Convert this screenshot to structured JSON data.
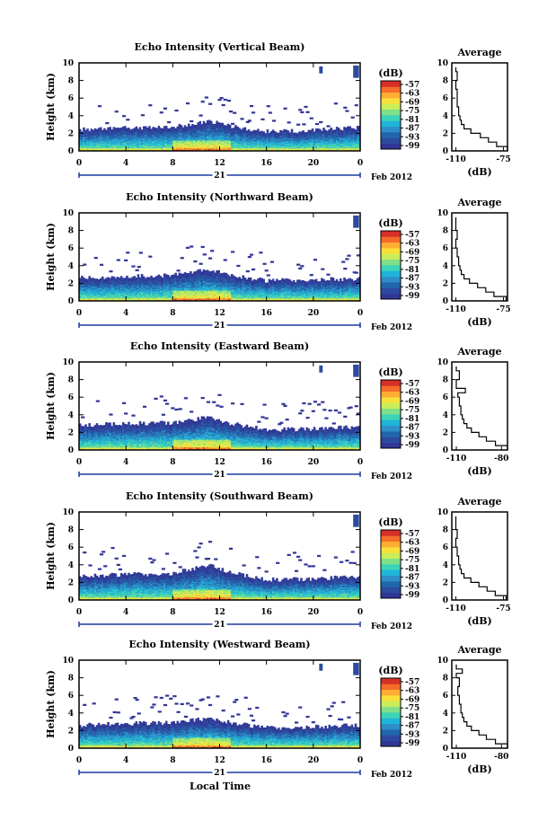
{
  "figure": {
    "date_label": "Feb 2012",
    "day_label": "21",
    "xlabel": "Local Time",
    "ylabel": "Height (km)",
    "colorbar_unit": "(dB)",
    "avg_title": "Average",
    "avg_xlabel": "(dB)",
    "x_ticks": [
      "0",
      "4",
      "8",
      "12",
      "16",
      "20",
      "0"
    ],
    "y_ticks": [
      "0",
      "2",
      "4",
      "6",
      "8",
      "10"
    ]
  },
  "colorbar": {
    "ticks": [
      "-57",
      "-63",
      "-69",
      "-75",
      "-81",
      "-87",
      "-93",
      "-99"
    ],
    "colors": [
      "#313695",
      "#2c4ba0",
      "#2166ac",
      "#2e8fc8",
      "#1fb5d8",
      "#3cd3b8",
      "#7fe089",
      "#c9ee5a",
      "#f8e03a",
      "#fdae33",
      "#f46d2a",
      "#d73027"
    ]
  },
  "chart_data": [
    {
      "type": "heatmap",
      "title": "Echo Intensity (Vertical Beam)",
      "xlabel": "Local Time",
      "ylabel": "Height (km)",
      "xlim": [
        0,
        24
      ],
      "ylim": [
        0,
        10
      ],
      "colorbar_range_db": [
        -99,
        -57
      ],
      "cloud_top_km": [
        [
          0,
          2.4
        ],
        [
          4,
          2.6
        ],
        [
          8,
          2.7
        ],
        [
          11,
          3.4
        ],
        [
          13,
          2.8
        ],
        [
          16,
          2.2
        ],
        [
          20,
          2.3
        ],
        [
          23,
          2.6
        ],
        [
          24,
          2.6
        ]
      ],
      "average_profile": {
        "title": "Average",
        "xlabel": "(dB)",
        "x_ticks": [
          "-110",
          "-75"
        ],
        "xlim": [
          -113,
          -72
        ],
        "height_km": [
          0,
          0.5,
          1,
          1.5,
          2,
          2.5,
          3,
          3.5,
          4,
          5,
          6,
          7,
          8,
          9,
          9.5
        ],
        "db": [
          -72,
          -80,
          -86,
          -92,
          -99,
          -104,
          -106,
          -107,
          -108,
          -109,
          -109,
          -110,
          -109,
          -110,
          -110
        ]
      }
    },
    {
      "type": "heatmap",
      "title": "Echo Intensity (Northward Beam)",
      "xlabel": "Local Time",
      "ylabel": "Height (km)",
      "xlim": [
        0,
        24
      ],
      "ylim": [
        0,
        10
      ],
      "colorbar_range_db": [
        -99,
        -57
      ],
      "cloud_top_km": [
        [
          0,
          2.6
        ],
        [
          4,
          2.8
        ],
        [
          8,
          2.9
        ],
        [
          11,
          3.6
        ],
        [
          13,
          2.9
        ],
        [
          16,
          2.3
        ],
        [
          20,
          2.4
        ],
        [
          23,
          2.5
        ],
        [
          24,
          2.5
        ]
      ],
      "average_profile": {
        "title": "Average",
        "xlabel": "(dB)",
        "x_ticks": [
          "-110",
          "-75"
        ],
        "xlim": [
          -113,
          -72
        ],
        "height_km": [
          0,
          0.5,
          1,
          1.5,
          2,
          2.5,
          3,
          3.5,
          4,
          5,
          6,
          7,
          8,
          9,
          9.5
        ],
        "db": [
          -73,
          -82,
          -88,
          -94,
          -100,
          -104,
          -106,
          -107,
          -108,
          -109,
          -110,
          -109,
          -110,
          -110,
          -110
        ]
      }
    },
    {
      "type": "heatmap",
      "title": "Echo Intensity (Eastward Beam)",
      "xlabel": "Local Time",
      "ylabel": "Height (km)",
      "xlim": [
        0,
        24
      ],
      "ylim": [
        0,
        10
      ],
      "colorbar_range_db": [
        -99,
        -57
      ],
      "cloud_top_km": [
        [
          0,
          2.8
        ],
        [
          4,
          3.0
        ],
        [
          8,
          3.1
        ],
        [
          11,
          3.7
        ],
        [
          13,
          3.0
        ],
        [
          16,
          2.3
        ],
        [
          20,
          2.4
        ],
        [
          23,
          2.6
        ],
        [
          24,
          2.6
        ]
      ],
      "average_profile": {
        "title": "Average",
        "xlabel": "(dB)",
        "x_ticks": [
          "-110",
          "-80"
        ],
        "xlim": [
          -113,
          -76
        ],
        "height_km": [
          0,
          0.5,
          1,
          1.5,
          2,
          2.5,
          3,
          3.5,
          4,
          5,
          6,
          6.5,
          7,
          8,
          9,
          9.5
        ],
        "db": [
          -76,
          -84,
          -90,
          -95,
          -100,
          -103,
          -105,
          -106,
          -107,
          -108,
          -109,
          -104,
          -110,
          -108,
          -110,
          -110
        ]
      }
    },
    {
      "type": "heatmap",
      "title": "Echo Intensity (Southward Beam)",
      "xlabel": "Local Time",
      "ylabel": "Height (km)",
      "xlim": [
        0,
        24
      ],
      "ylim": [
        0,
        10
      ],
      "colorbar_range_db": [
        -99,
        -57
      ],
      "cloud_top_km": [
        [
          0,
          2.7
        ],
        [
          4,
          2.9
        ],
        [
          8,
          3.0
        ],
        [
          11,
          4.0
        ],
        [
          13,
          3.1
        ],
        [
          16,
          2.3
        ],
        [
          20,
          2.4
        ],
        [
          23,
          2.6
        ],
        [
          24,
          2.6
        ]
      ],
      "average_profile": {
        "title": "Average",
        "xlabel": "(dB)",
        "x_ticks": [
          "-110",
          "-75"
        ],
        "xlim": [
          -113,
          -72
        ],
        "height_km": [
          0,
          0.5,
          1,
          1.5,
          2,
          2.5,
          3,
          3.5,
          4,
          5,
          6,
          7,
          8,
          9,
          9.5
        ],
        "db": [
          -73,
          -81,
          -87,
          -93,
          -99,
          -104,
          -106,
          -107,
          -108,
          -109,
          -110,
          -109,
          -110,
          -110,
          -110
        ]
      }
    },
    {
      "type": "heatmap",
      "title": "Echo Intensity (Westward Beam)",
      "xlabel": "Local Time",
      "ylabel": "Height (km)",
      "xlim": [
        0,
        24
      ],
      "ylim": [
        0,
        10
      ],
      "colorbar_range_db": [
        -99,
        -57
      ],
      "cloud_top_km": [
        [
          0,
          2.6
        ],
        [
          4,
          2.8
        ],
        [
          8,
          2.9
        ],
        [
          11,
          3.4
        ],
        [
          13,
          2.9
        ],
        [
          16,
          2.3
        ],
        [
          20,
          2.4
        ],
        [
          23,
          2.6
        ],
        [
          24,
          2.6
        ]
      ],
      "average_profile": {
        "title": "Average",
        "xlabel": "(dB)",
        "x_ticks": [
          "-110",
          "-80"
        ],
        "xlim": [
          -113,
          -76
        ],
        "height_km": [
          0,
          0.5,
          1,
          1.5,
          2,
          2.5,
          3,
          3.5,
          4,
          5,
          6,
          7,
          8,
          8.5,
          9,
          9.5
        ],
        "db": [
          -76,
          -84,
          -90,
          -95,
          -100,
          -103,
          -105,
          -106,
          -107,
          -108,
          -109,
          -108,
          -110,
          -106,
          -110,
          -110
        ]
      }
    }
  ]
}
